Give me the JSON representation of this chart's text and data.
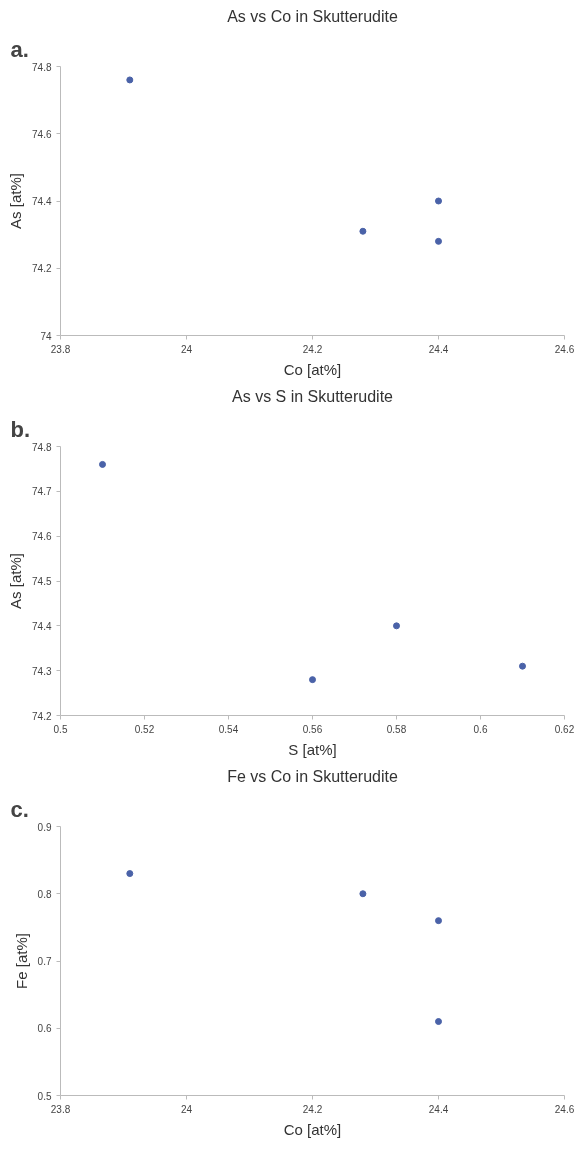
{
  "chart_data": [
    {
      "type": "scatter",
      "title": "As vs Co in Skutterudite",
      "xlabel": "Co [at%]",
      "ylabel": "As [at%]",
      "annotations": [
        "a."
      ],
      "x": [
        23.91,
        24.28,
        24.4,
        24.4
      ],
      "values": [
        74.76,
        74.31,
        74.4,
        74.28
      ],
      "color": "#4a62a8",
      "marker": "circle",
      "xlim": [
        23.8,
        24.6
      ],
      "xticks": [
        23.8,
        24,
        24.2,
        24.4,
        24.6
      ],
      "ylim": [
        74,
        74.8
      ],
      "yticks": [
        74,
        74.2,
        74.4,
        74.6,
        74.8
      ],
      "grid": false
    },
    {
      "type": "scatter",
      "title": "As vs S in Skutterudite",
      "xlabel": "S [at%]",
      "ylabel": "As [at%]",
      "annotations": [
        "b."
      ],
      "x": [
        0.51,
        0.56,
        0.58,
        0.61
      ],
      "values": [
        74.76,
        74.28,
        74.4,
        74.31
      ],
      "color": "#4a62a8",
      "marker": "circle",
      "xlim": [
        0.5,
        0.62
      ],
      "xticks": [
        0.5,
        0.52,
        0.54,
        0.56,
        0.58,
        0.6,
        0.62
      ],
      "ylim": [
        74.2,
        74.8
      ],
      "yticks": [
        74.2,
        74.3,
        74.4,
        74.5,
        74.6,
        74.7,
        74.8
      ],
      "grid": false
    },
    {
      "type": "scatter",
      "title": "Fe vs Co in Skutterudite",
      "xlabel": "Co [at%]",
      "ylabel": "Fe [at%]",
      "annotations": [
        "c."
      ],
      "x": [
        23.91,
        24.28,
        24.4,
        24.4
      ],
      "values": [
        0.83,
        0.8,
        0.76,
        0.61
      ],
      "color": "#4a62a8",
      "marker": "circle",
      "xlim": [
        23.8,
        24.6
      ],
      "xticks": [
        23.8,
        24,
        24.2,
        24.4,
        24.6
      ],
      "ylim": [
        0.5,
        0.9
      ],
      "yticks": [
        0.5,
        0.6,
        0.7,
        0.8,
        0.9
      ],
      "grid": false
    }
  ]
}
